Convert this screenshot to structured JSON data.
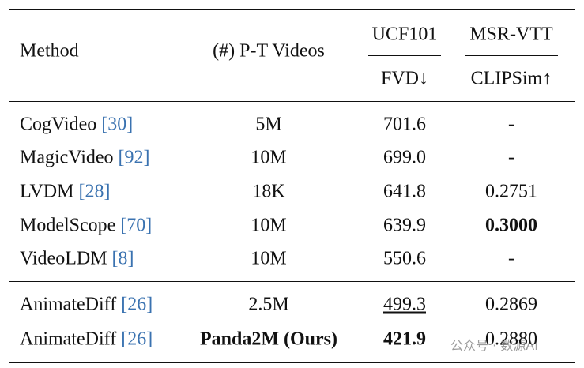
{
  "header": {
    "method": "Method",
    "videos": "(#) P-T Videos",
    "ucf": "UCF101",
    "msr": "MSR-VTT",
    "fvd": "FVD↓",
    "clip": "CLIPSim↑"
  },
  "rows": [
    [
      "CogVideo",
      "[30]",
      "5M",
      "701.6",
      "-"
    ],
    [
      "MagicVideo",
      "[92]",
      "10M",
      "699.0",
      "-"
    ],
    [
      "LVDM",
      "[28]",
      "18K",
      "641.8",
      "0.2751"
    ],
    [
      "ModelScope",
      "[70]",
      "10M",
      "639.9",
      "0.3000"
    ],
    [
      "VideoLDM",
      "[8]",
      "10M",
      "550.6",
      "-"
    ],
    [
      "AnimateDiff",
      "[26]",
      "2.5M",
      "499.3",
      "0.2869"
    ],
    [
      "AnimateDiff",
      "[26]",
      "Panda2M (Ours)",
      "421.9",
      "0.2880"
    ]
  ],
  "watermark": "公众号 · 数源AI"
}
